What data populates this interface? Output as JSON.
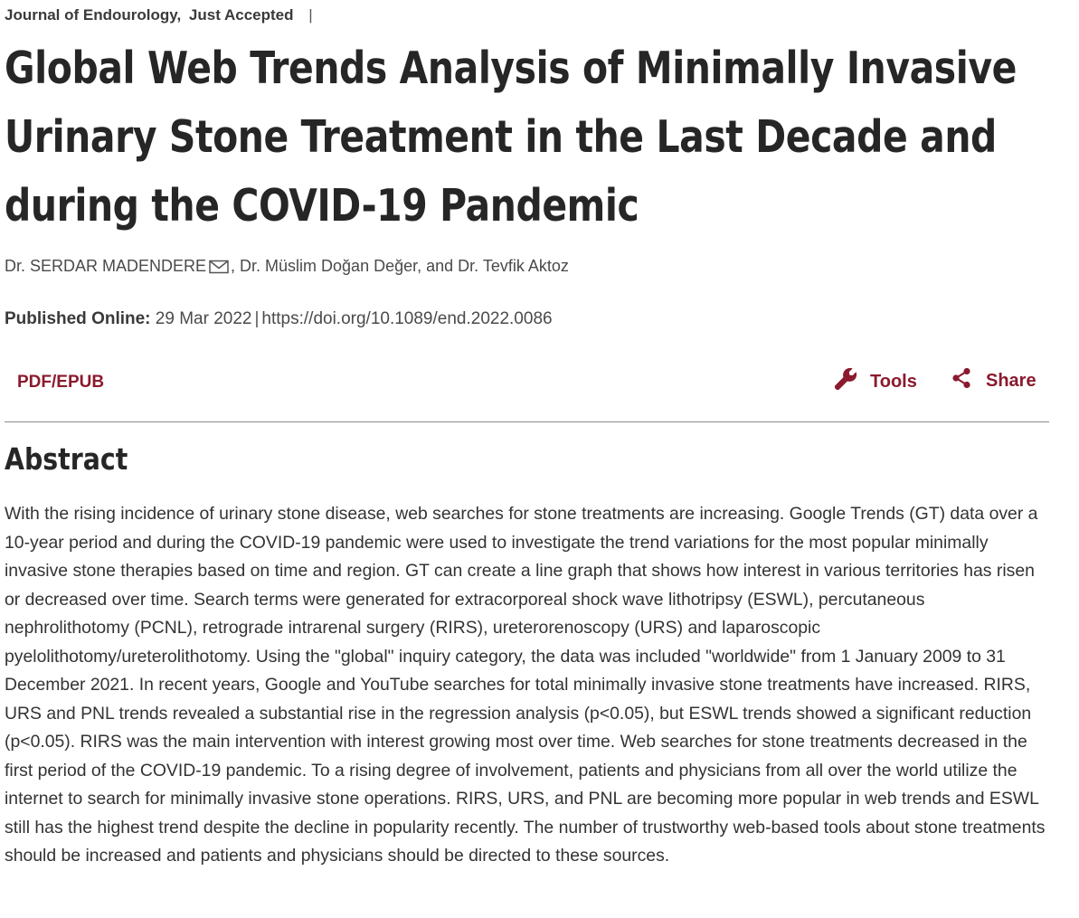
{
  "header": {
    "journal": "Journal of Endourology,",
    "status": "Just Accepted",
    "separator": "|"
  },
  "article": {
    "title": "Global Web Trends Analysis of Minimally Invasive Urinary Stone Treatment in the Last Decade and during the COVID-19 Pandemic",
    "authors": {
      "first": "Dr. SERDAR MADENDERE",
      "rest": ", Dr. Müslim Doğan Değer, and Dr. Tevfik Aktoz"
    },
    "published_label": "Published Online:",
    "published_date": "29 Mar 2022",
    "doi_separator": "|",
    "doi": "https://doi.org/10.1089/end.2022.0086"
  },
  "toolbar": {
    "pdf_label": "PDF/EPUB",
    "tools_label": "Tools",
    "share_label": "Share"
  },
  "abstract": {
    "heading": "Abstract",
    "text": "With the rising incidence of urinary stone disease, web searches for stone treatments are increasing. Google Trends (GT) data over a 10-year period and during the COVID-19 pandemic were used to investigate the trend variations for the most popular minimally invasive stone therapies based on time and region. GT can create a line graph that shows how interest in various territories has risen or decreased over time. Search terms were generated for extracorporeal shock wave lithotripsy (ESWL), percutaneous nephrolithotomy (PCNL), retrograde intrarenal surgery (RIRS), ureterorenoscopy (URS) and laparoscopic pyelolithotomy/ureterolithotomy. Using the \"global\" inquiry category, the data was included \"worldwide\" from 1 January 2009 to 31 December 2021. In recent years, Google and YouTube searches for total minimally invasive stone treatments have increased. RIRS, URS and PNL trends revealed a substantial rise in the regression analysis (p<0.05), but ESWL trends showed a significant reduction (p<0.05). RIRS was the main intervention with interest growing most over time. Web searches for stone treatments decreased in the first period of the COVID-19 pandemic. To a rising degree of involvement, patients and physicians from all over the world utilize the internet to search for minimally invasive stone operations. RIRS, URS, and PNL are becoming more popular in web trends and ESWL still has the highest trend despite the decline in popularity recently. The number of trustworthy web-based tools about stone treatments should be increased and patients and physicians should be directed to these sources."
  },
  "icons": {
    "author_contact": "mail-icon",
    "tools": "wrench-icon",
    "share": "share-icon"
  },
  "colors": {
    "accent": "#8b1a2e",
    "text": "#333333",
    "title": "#262626",
    "divider": "#8c8c8c"
  }
}
